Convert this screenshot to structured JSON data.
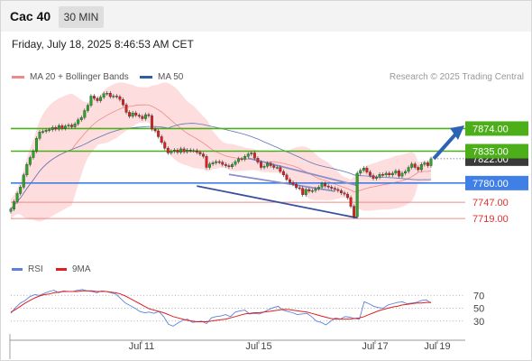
{
  "header": {
    "symbol": "Cac 40",
    "timeframe": "30 MIN"
  },
  "timestamp": "Friday, July 18, 2025 8:46:53 AM CET",
  "legend": {
    "ma_bollinger": "MA 20 + Bollinger Bands",
    "ma50": "MA 50"
  },
  "credit": "Research © 2025 Trading Central",
  "rsi_legend": {
    "rsi": "RSI",
    "ma9": "9MA"
  },
  "colors": {
    "bollinger_fill": "#fdd9d9",
    "ma20": "#f08a8a",
    "ma50": "#5a77b8",
    "resistance": "#4caf1a",
    "pivot": "#3f7fe6",
    "support": "#f08a8a",
    "candle_up": "#25a925",
    "candle_down": "#e01f1f",
    "arrow": "#2d63b5",
    "rsi": "#5b82d8",
    "rsi_ma": "#e02020"
  },
  "chart_data": [
    {
      "type": "candlestick",
      "title": "Cac 40",
      "x_ticks": [
        "Jul 11",
        "Jul 15",
        "Jul 17",
        "Jul 19"
      ],
      "ylim": [
        7660,
        7940
      ],
      "current_price": "7822.00",
      "levels": [
        {
          "label": "7874.00",
          "value": 7874,
          "kind": "resistance"
        },
        {
          "label": "7835.00",
          "value": 7835,
          "kind": "resistance"
        },
        {
          "label": "7780.00",
          "value": 7780,
          "kind": "pivot"
        },
        {
          "label": "7747.00",
          "value": 7747,
          "kind": "support"
        },
        {
          "label": "7719.00",
          "value": 7719,
          "kind": "support"
        }
      ],
      "close": [
        7735,
        7748,
        7762,
        7773,
        7794,
        7812,
        7824,
        7835,
        7857,
        7868,
        7869,
        7871,
        7872,
        7876,
        7873,
        7879,
        7874,
        7878,
        7880,
        7877,
        7882,
        7889,
        7893,
        7905,
        7914,
        7930,
        7926,
        7922,
        7928,
        7934,
        7935,
        7929,
        7930,
        7929,
        7924,
        7915,
        7902,
        7895,
        7901,
        7897,
        7895,
        7891,
        7898,
        7896,
        7873,
        7870,
        7860,
        7850,
        7840,
        7832,
        7835,
        7837,
        7833,
        7839,
        7834,
        7837,
        7836,
        7836,
        7833,
        7830,
        7826,
        7807,
        7813,
        7815,
        7817,
        7816,
        7812,
        7810,
        7808,
        7812,
        7817,
        7822,
        7821,
        7826,
        7830,
        7832,
        7823,
        7816,
        7807,
        7809,
        7814,
        7810,
        7807,
        7807,
        7800,
        7794,
        7786,
        7781,
        7778,
        7772,
        7771,
        7760,
        7769,
        7766,
        7767,
        7770,
        7773,
        7779,
        7775,
        7773,
        7771,
        7769,
        7767,
        7763,
        7761,
        7755,
        7740,
        7722,
        7797,
        7802,
        7806,
        7799,
        7793,
        7788,
        7790,
        7795,
        7794,
        7797,
        7794,
        7797,
        7801,
        7792,
        7797,
        7800,
        7807,
        7813,
        7807,
        7803,
        7812,
        7815,
        7810,
        7822
      ]
    },
    {
      "type": "line",
      "title": "RSI",
      "y_ticks": [
        30,
        50,
        70
      ],
      "ylim": [
        10,
        90
      ],
      "series": [
        {
          "name": "RSI",
          "values": [
            42,
            51,
            58,
            62,
            68,
            71,
            70,
            73,
            76,
            78,
            74,
            77,
            76,
            76,
            78,
            79,
            77,
            76,
            74,
            77,
            76,
            74,
            72,
            65,
            58,
            54,
            50,
            45,
            43,
            44,
            42,
            45,
            37,
            25,
            22,
            27,
            31,
            33,
            28,
            29,
            30,
            26,
            35,
            37,
            38,
            40,
            37,
            44,
            46,
            47,
            41,
            42,
            41,
            44,
            48,
            51,
            53,
            47,
            45,
            43,
            40,
            41,
            42,
            37,
            30,
            28,
            24,
            30,
            35,
            33,
            37,
            36,
            34,
            33,
            60,
            57,
            53,
            51,
            50,
            55,
            57,
            59,
            60,
            57,
            58,
            59,
            62,
            63,
            58
          ]
        },
        {
          "name": "9MA",
          "values": [
            44,
            48,
            53,
            58,
            62,
            66,
            69,
            71,
            72,
            74,
            75,
            76,
            76,
            76,
            76,
            77,
            77,
            77,
            76,
            76,
            76,
            75,
            74,
            72,
            69,
            65,
            61,
            57,
            53,
            49,
            47,
            45,
            43,
            40,
            37,
            35,
            33,
            31,
            30,
            29,
            29,
            29,
            30,
            31,
            32,
            33,
            35,
            37,
            39,
            41,
            42,
            43,
            43,
            44,
            45,
            46,
            47,
            48,
            48,
            47,
            46,
            45,
            44,
            42,
            40,
            38,
            36,
            34,
            33,
            33,
            33,
            33,
            34,
            35,
            37,
            40,
            43,
            46,
            48,
            50,
            52,
            53,
            55,
            56,
            57,
            58,
            58,
            59,
            59
          ]
        }
      ]
    }
  ]
}
